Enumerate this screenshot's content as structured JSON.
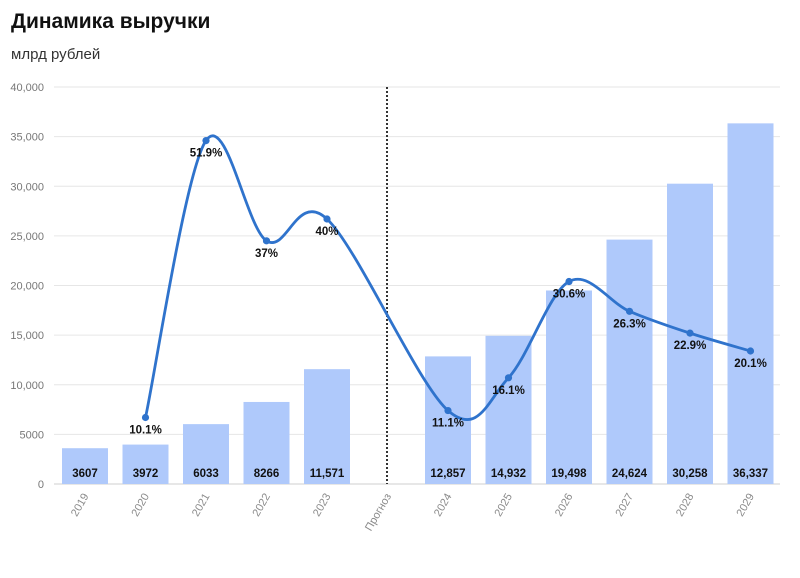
{
  "title": "Динамика выручки",
  "subtitle": "млрд рублей",
  "colors": {
    "bar": "#afc9fb",
    "line": "#2f73cc",
    "grid": "#e6e6e6",
    "divider": "#333333"
  },
  "chart_data": {
    "type": "bar",
    "categories": [
      "2019",
      "2020",
      "2021",
      "2022",
      "2023",
      "Прогноз",
      "2024",
      "2025",
      "2026",
      "2027",
      "2028",
      "2029"
    ],
    "ylim": [
      0,
      40000
    ],
    "yticks": [
      {
        "value": 0,
        "label": "0"
      },
      {
        "value": 5000,
        "label": "5000"
      },
      {
        "value": 10000,
        "label": "10,000"
      },
      {
        "value": 15000,
        "label": "15,000"
      },
      {
        "value": 20000,
        "label": "20,000"
      },
      {
        "value": 25000,
        "label": "25,000"
      },
      {
        "value": 30000,
        "label": "30,000"
      },
      {
        "value": 35000,
        "label": "35,000"
      },
      {
        "value": 40000,
        "label": "40,000"
      }
    ],
    "grid": true,
    "divider_after_category": "2023",
    "bars": [
      {
        "category": "2019",
        "value": 3607,
        "label": "3607"
      },
      {
        "category": "2020",
        "value": 3972,
        "label": "3972"
      },
      {
        "category": "2021",
        "value": 6033,
        "label": "6033"
      },
      {
        "category": "2022",
        "value": 8266,
        "label": "8266"
      },
      {
        "category": "2023",
        "value": 11571,
        "label": "11,571"
      },
      {
        "category": "2024",
        "value": 12857,
        "label": "12,857"
      },
      {
        "category": "2025",
        "value": 14932,
        "label": "14,932"
      },
      {
        "category": "2026",
        "value": 19498,
        "label": "19,498"
      },
      {
        "category": "2027",
        "value": 24624,
        "label": "24,624"
      },
      {
        "category": "2028",
        "value": 30258,
        "label": "30,258"
      },
      {
        "category": "2029",
        "value": 36337,
        "label": "36,337"
      }
    ],
    "growth_line": {
      "points": [
        {
          "category": "2020",
          "value": 6700,
          "label": "10.1%",
          "label_pos": "below"
        },
        {
          "category": "2021",
          "value": 34600,
          "label": "51.9%",
          "label_pos": "below"
        },
        {
          "category": "2022",
          "value": 24500,
          "label": "37%",
          "label_pos": "below"
        },
        {
          "category": "2023",
          "value": 26700,
          "label": "40%",
          "label_pos": "below"
        },
        {
          "category": "2024",
          "value": 7400,
          "label": "11.1%",
          "label_pos": "below"
        },
        {
          "category": "2025",
          "value": 10700,
          "label": "16.1%",
          "label_pos": "below"
        },
        {
          "category": "2026",
          "value": 20400,
          "label": "30.6%",
          "label_pos": "below"
        },
        {
          "category": "2027",
          "value": 17400,
          "label": "26.3%",
          "label_pos": "below"
        },
        {
          "category": "2028",
          "value": 15200,
          "label": "22.9%",
          "label_pos": "below"
        },
        {
          "category": "2029",
          "value": 13400,
          "label": "20.1%",
          "label_pos": "below"
        }
      ]
    }
  }
}
